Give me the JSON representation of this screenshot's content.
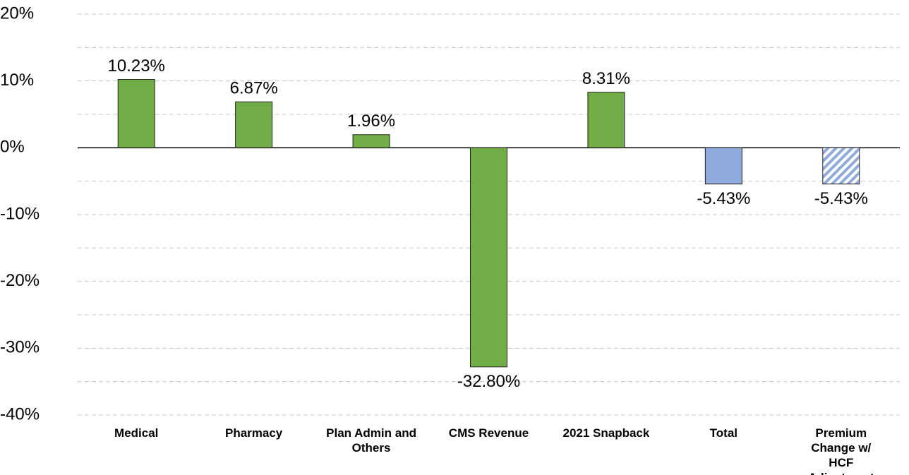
{
  "chart_data": {
    "type": "bar",
    "categories": [
      "Medical",
      "Pharmacy",
      "Plan Admin and Others",
      "CMS Revenue",
      "2021 Snapback",
      "Total",
      "Premium Change w/ HCF Adjustment"
    ],
    "values": [
      10.23,
      6.87,
      1.96,
      -32.8,
      8.31,
      -5.43,
      -5.43
    ],
    "value_labels": [
      "10.23%",
      "6.87%",
      "1.96%",
      "-32.80%",
      "8.31%",
      "-5.43%",
      "-5.43%"
    ],
    "colors": [
      "#70ad47",
      "#70ad47",
      "#70ad47",
      "#70ad47",
      "#70ad47",
      "#8faadc",
      "#8faadc"
    ],
    "hatch": [
      false,
      false,
      false,
      false,
      false,
      false,
      true
    ],
    "ylim": [
      -40,
      20
    ],
    "yticks": [
      {
        "value": 20,
        "label": "20%"
      },
      {
        "value": 10,
        "label": "10%"
      },
      {
        "value": 0,
        "label": "0%"
      },
      {
        "value": -10,
        "label": "-10%"
      },
      {
        "value": -20,
        "label": "-20%"
      },
      {
        "value": -30,
        "label": "-30%"
      },
      {
        "value": -40,
        "label": "-40%"
      }
    ],
    "minor_yticks": [
      15,
      5,
      -5,
      -15,
      -25,
      -35
    ],
    "grid": true
  }
}
